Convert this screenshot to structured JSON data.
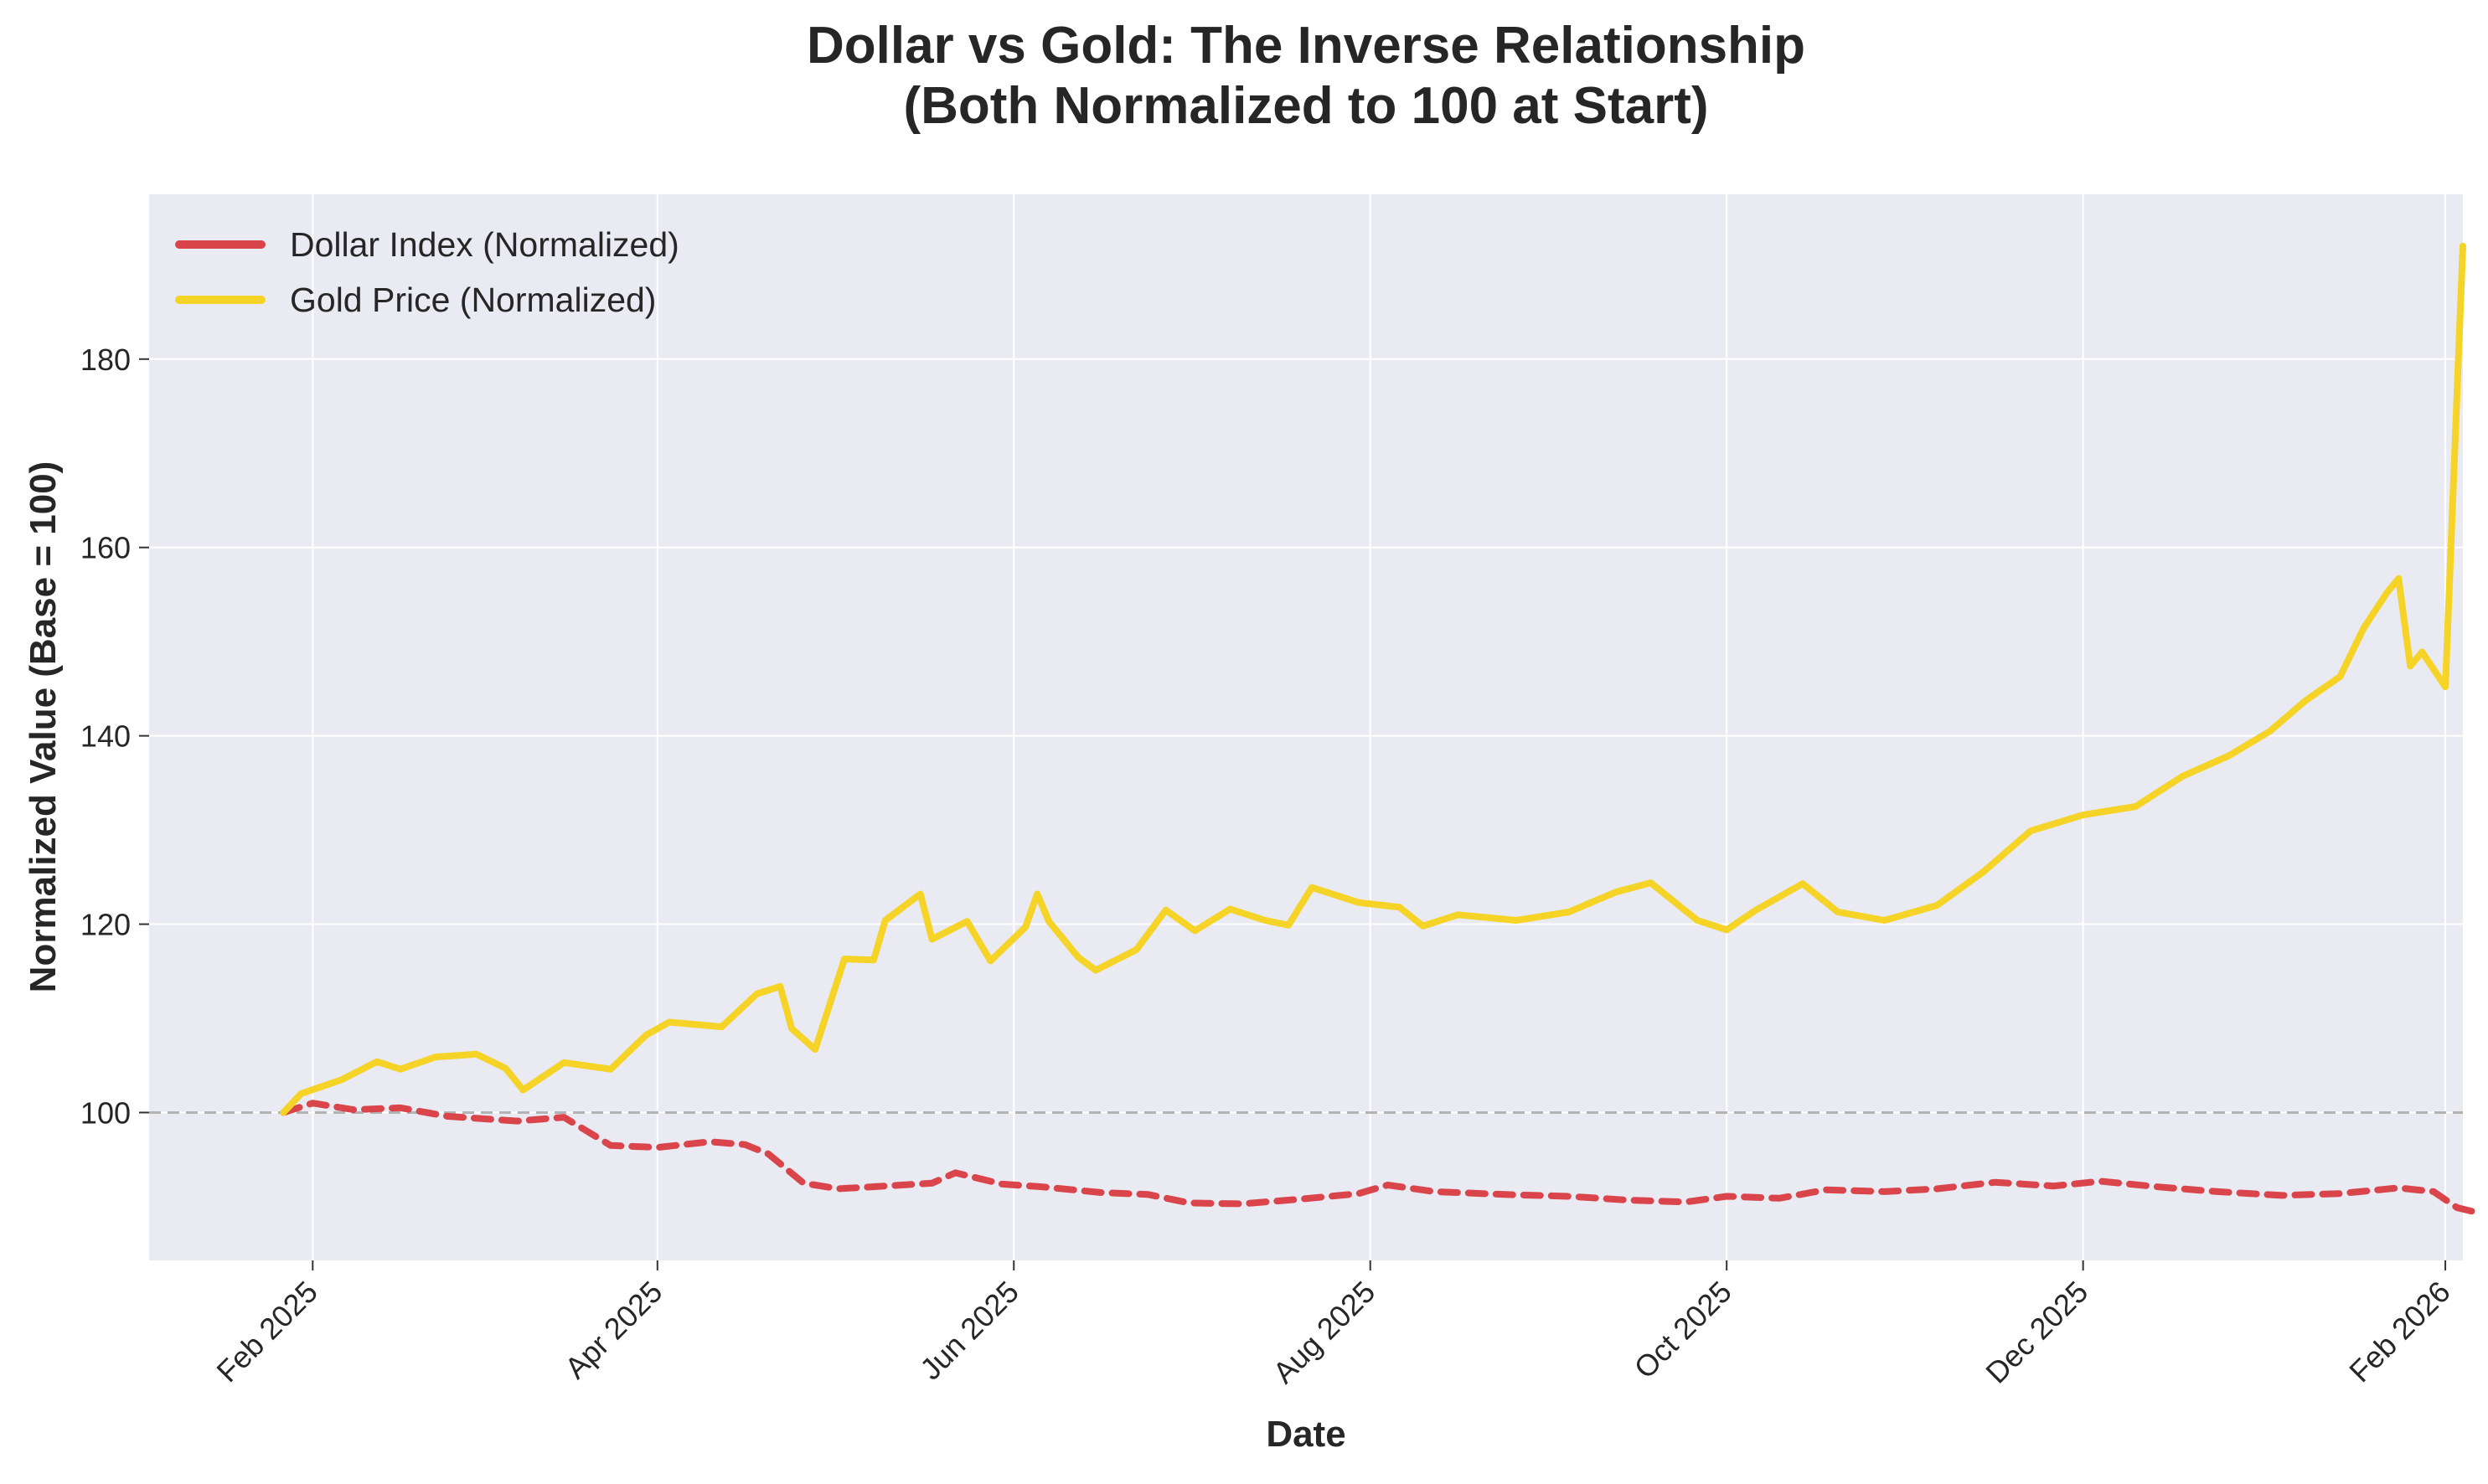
{
  "chart_data": {
    "type": "line",
    "title_lines": [
      "Dollar vs Gold: The Inverse Relationship",
      "(Both Normalized to 100 at Start)"
    ],
    "xlabel": "Date",
    "ylabel": "Normalized Value (Base = 100)",
    "x_ticks": [
      "Feb 2025",
      "Apr 2025",
      "Jun 2025",
      "Aug 2025",
      "Oct 2025",
      "Dec 2025",
      "Feb 2026"
    ],
    "x_tick_dates": [
      "2025-02-01",
      "2025-04-01",
      "2025-06-01",
      "2025-08-01",
      "2025-10-01",
      "2025-12-01",
      "2026-02-01"
    ],
    "xlim": [
      "2025-01-04",
      "2026-02-04"
    ],
    "y_ticks": [
      100,
      120,
      140,
      160,
      180
    ],
    "ylim": [
      84.3,
      197.5
    ],
    "grid": true,
    "legend_position": "upper left",
    "reference_line": {
      "y": 100,
      "style": "dashed",
      "color": "#b3b3b3"
    },
    "series": [
      {
        "name": "Dollar Index (Normalized)",
        "color": "#d9454a",
        "style": "dashed",
        "points": [
          [
            "2025-01-27",
            100
          ],
          [
            "2025-02-01",
            101
          ],
          [
            "2025-02-08",
            100.3
          ],
          [
            "2025-02-16",
            100.5
          ],
          [
            "2025-02-24",
            99.6
          ],
          [
            "2025-03-08",
            99.1
          ],
          [
            "2025-03-16",
            99.5
          ],
          [
            "2025-03-24",
            96.5
          ],
          [
            "2025-04-01",
            96.3
          ],
          [
            "2025-04-10",
            96.9
          ],
          [
            "2025-04-16",
            96.6
          ],
          [
            "2025-04-20",
            95.6
          ],
          [
            "2025-04-26",
            92.5
          ],
          [
            "2025-05-02",
            91.9
          ],
          [
            "2025-05-10",
            92.2
          ],
          [
            "2025-05-18",
            92.5
          ],
          [
            "2025-05-22",
            93.6
          ],
          [
            "2025-05-30",
            92.4
          ],
          [
            "2025-06-06",
            92.1
          ],
          [
            "2025-06-16",
            91.5
          ],
          [
            "2025-06-24",
            91.3
          ],
          [
            "2025-07-01",
            90.4
          ],
          [
            "2025-07-10",
            90.3
          ],
          [
            "2025-07-20",
            90.8
          ],
          [
            "2025-07-30",
            91.4
          ],
          [
            "2025-08-04",
            92.3
          ],
          [
            "2025-08-12",
            91.6
          ],
          [
            "2025-08-24",
            91.3
          ],
          [
            "2025-09-04",
            91.1
          ],
          [
            "2025-09-14",
            90.7
          ],
          [
            "2025-09-24",
            90.5
          ],
          [
            "2025-10-01",
            91.1
          ],
          [
            "2025-10-10",
            90.9
          ],
          [
            "2025-10-18",
            91.8
          ],
          [
            "2025-10-28",
            91.6
          ],
          [
            "2025-11-06",
            91.9
          ],
          [
            "2025-11-16",
            92.6
          ],
          [
            "2025-11-26",
            92.2
          ],
          [
            "2025-12-04",
            92.7
          ],
          [
            "2025-12-14",
            92.1
          ],
          [
            "2025-12-24",
            91.6
          ],
          [
            "2026-01-04",
            91.2
          ],
          [
            "2026-01-14",
            91.4
          ],
          [
            "2026-01-24",
            92.0
          ],
          [
            "2026-01-30",
            91.6
          ],
          [
            "2026-02-03",
            89.9
          ],
          [
            "2026-02-07",
            89.3
          ]
        ]
      },
      {
        "name": "Gold Price (Normalized)",
        "color": "#f5d327",
        "style": "solid",
        "points": [
          [
            "2025-01-27",
            100
          ],
          [
            "2025-01-30",
            102
          ],
          [
            "2025-02-06",
            103.5
          ],
          [
            "2025-02-12",
            105.4
          ],
          [
            "2025-02-16",
            104.6
          ],
          [
            "2025-02-22",
            105.9
          ],
          [
            "2025-03-01",
            106.2
          ],
          [
            "2025-03-06",
            104.7
          ],
          [
            "2025-03-09",
            102.4
          ],
          [
            "2025-03-16",
            105.3
          ],
          [
            "2025-03-24",
            104.6
          ],
          [
            "2025-03-30",
            108.2
          ],
          [
            "2025-04-03",
            109.6
          ],
          [
            "2025-04-12",
            109.1
          ],
          [
            "2025-04-18",
            112.6
          ],
          [
            "2025-04-22",
            113.4
          ],
          [
            "2025-04-24",
            108.9
          ],
          [
            "2025-04-28",
            106.7
          ],
          [
            "2025-05-03",
            116.3
          ],
          [
            "2025-05-08",
            116.2
          ],
          [
            "2025-05-10",
            120.4
          ],
          [
            "2025-05-16",
            123.2
          ],
          [
            "2025-05-18",
            118.4
          ],
          [
            "2025-05-24",
            120.3
          ],
          [
            "2025-05-28",
            116.1
          ],
          [
            "2025-06-03",
            119.7
          ],
          [
            "2025-06-05",
            123.2
          ],
          [
            "2025-06-07",
            120.3
          ],
          [
            "2025-06-12",
            116.5
          ],
          [
            "2025-06-15",
            115.1
          ],
          [
            "2025-06-22",
            117.3
          ],
          [
            "2025-06-27",
            121.5
          ],
          [
            "2025-07-02",
            119.3
          ],
          [
            "2025-07-08",
            121.6
          ],
          [
            "2025-07-14",
            120.4
          ],
          [
            "2025-07-18",
            119.9
          ],
          [
            "2025-07-22",
            123.9
          ],
          [
            "2025-07-30",
            122.3
          ],
          [
            "2025-08-06",
            121.8
          ],
          [
            "2025-08-10",
            119.8
          ],
          [
            "2025-08-16",
            121
          ],
          [
            "2025-08-26",
            120.4
          ],
          [
            "2025-09-04",
            121.3
          ],
          [
            "2025-09-12",
            123.4
          ],
          [
            "2025-09-18",
            124.4
          ],
          [
            "2025-09-26",
            120.4
          ],
          [
            "2025-10-01",
            119.4
          ],
          [
            "2025-10-06",
            121.5
          ],
          [
            "2025-10-14",
            124.3
          ],
          [
            "2025-10-20",
            121.3
          ],
          [
            "2025-10-28",
            120.4
          ],
          [
            "2025-11-06",
            122
          ],
          [
            "2025-11-14",
            125.6
          ],
          [
            "2025-11-22",
            129.9
          ],
          [
            "2025-12-01",
            131.6
          ],
          [
            "2025-12-10",
            132.5
          ],
          [
            "2025-12-18",
            135.7
          ],
          [
            "2025-12-26",
            137.9
          ],
          [
            "2026-01-02",
            140.5
          ],
          [
            "2026-01-08",
            143.7
          ],
          [
            "2026-01-14",
            146.3
          ],
          [
            "2026-01-18",
            151.4
          ],
          [
            "2026-01-22",
            155.2
          ],
          [
            "2026-01-24",
            156.7
          ],
          [
            "2026-01-26",
            147.4
          ],
          [
            "2026-01-28",
            148.9
          ],
          [
            "2026-02-01",
            145.2
          ],
          [
            "2026-02-04",
            192
          ]
        ]
      }
    ]
  }
}
